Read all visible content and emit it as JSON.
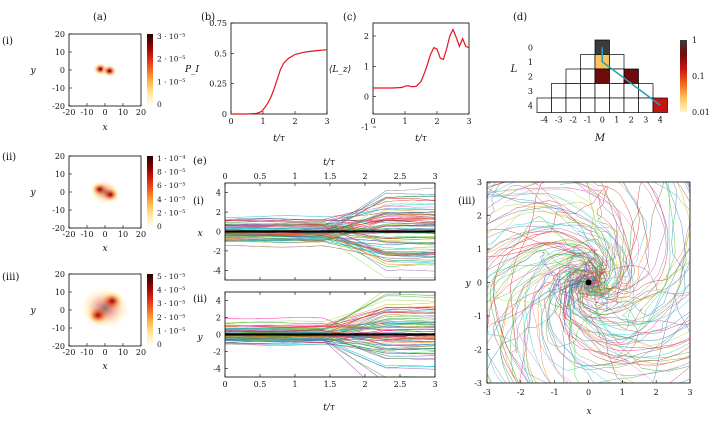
{
  "chart_data": [
    {
      "id": "a",
      "type": "heatmap",
      "panel_label": "(a)",
      "subpanels": [
        {
          "label": "(i)",
          "xlabel": "x",
          "ylabel": "y",
          "xlim": [
            -20,
            20
          ],
          "ylim": [
            -20,
            20
          ],
          "xticks": [
            "-20",
            "-10",
            "0",
            "10",
            "20"
          ],
          "yticks": [
            "20",
            "10",
            "0",
            "-10",
            "-20"
          ],
          "colorbar_ticks": [
            "3 · 10⁻⁵",
            "2 · 10⁻⁵",
            "1 · 10⁻⁵",
            "0"
          ],
          "colorbar_max": 3.3e-05,
          "blobs": [
            {
              "x": -2.5,
              "y": 0.5,
              "sigma": 2.2,
              "amp": 1.0
            },
            {
              "x": 2.5,
              "y": -0.5,
              "sigma": 2.2,
              "amp": 1.0
            }
          ]
        },
        {
          "label": "(ii)",
          "xlabel": "x",
          "ylabel": "y",
          "xlim": [
            -20,
            20
          ],
          "ylim": [
            -20,
            20
          ],
          "xticks": [
            "-20",
            "-10",
            "0",
            "10",
            "20"
          ],
          "yticks": [
            "20",
            "10",
            "0",
            "-10",
            "-20"
          ],
          "colorbar_ticks": [
            "1 · 10⁻⁴",
            "8 · 10⁻⁵",
            "6 · 10⁻⁵",
            "4 · 10⁻⁵",
            "2 · 10⁻⁵",
            "0"
          ],
          "colorbar_max": 0.0001,
          "blobs": [
            {
              "x": -3,
              "y": 1.5,
              "sigma": 2.6,
              "amp": 1.0
            },
            {
              "x": 3,
              "y": -1.5,
              "sigma": 2.6,
              "amp": 1.0
            },
            {
              "x": 0,
              "y": 0,
              "sigma": 4.5,
              "amp": 0.45
            }
          ]
        },
        {
          "label": "(iii)",
          "xlabel": "x",
          "ylabel": "y",
          "xlim": [
            -20,
            20
          ],
          "ylim": [
            -20,
            20
          ],
          "xticks": [
            "-20",
            "-10",
            "0",
            "10",
            "20"
          ],
          "yticks": [
            "20",
            "10",
            "0",
            "-10",
            "-20"
          ],
          "colorbar_ticks": [
            "5 · 10⁻⁵",
            "4 · 10⁻⁵",
            "3 · 10⁻⁵",
            "2 · 10⁻⁵",
            "1 · 10⁻⁵",
            "0"
          ],
          "colorbar_max": 5e-05,
          "blobs": [
            {
              "x": -4,
              "y": -3,
              "sigma": 3.2,
              "amp": 1.0
            },
            {
              "x": 4,
              "y": 5,
              "sigma": 3.2,
              "amp": 1.0
            },
            {
              "x": 0,
              "y": 1,
              "sigma": 7.5,
              "amp": 0.55
            }
          ]
        }
      ]
    },
    {
      "id": "b",
      "type": "line",
      "panel_label": "(b)",
      "xlabel": "t/τ",
      "ylabel": "P_I",
      "xlim": [
        0,
        3
      ],
      "ylim": [
        0,
        0.75
      ],
      "xticks": [
        "0",
        "1",
        "2",
        "3"
      ],
      "yticks": [
        "0",
        "0.25",
        "0.5",
        "0.75"
      ],
      "color": "#e8141c",
      "x": [
        0,
        0.5,
        0.8,
        0.95,
        1.05,
        1.15,
        1.25,
        1.35,
        1.45,
        1.55,
        1.65,
        1.8,
        2.0,
        2.3,
        2.6,
        3.0
      ],
      "y": [
        0,
        0,
        0.005,
        0.02,
        0.05,
        0.09,
        0.14,
        0.21,
        0.29,
        0.37,
        0.42,
        0.46,
        0.49,
        0.51,
        0.52,
        0.53
      ]
    },
    {
      "id": "c",
      "type": "line",
      "panel_label": "(c)",
      "xlabel": "t/τ",
      "ylabel": "⟨L_z⟩",
      "xlim": [
        0,
        3
      ],
      "ylim": [
        -1,
        2.5
      ],
      "xticks": [
        "0",
        "1",
        "2",
        "3"
      ],
      "yticks": [
        "2",
        "1",
        "0",
        "-1"
      ],
      "color": "#e8141c",
      "x": [
        0,
        0.6,
        0.9,
        1.0,
        1.1,
        1.2,
        1.35,
        1.5,
        1.6,
        1.7,
        1.8,
        1.9,
        2.0,
        2.1,
        2.2,
        2.3,
        2.4,
        2.5,
        2.6,
        2.7,
        2.8,
        2.9,
        3.0
      ],
      "y": [
        0,
        0,
        0.02,
        0.07,
        0.09,
        0.05,
        0.06,
        0.25,
        0.55,
        0.9,
        1.3,
        1.55,
        1.5,
        1.15,
        1.1,
        1.5,
        2.0,
        2.25,
        1.95,
        1.6,
        1.9,
        1.6,
        1.55
      ]
    },
    {
      "id": "d",
      "type": "heatmap",
      "panel_label": "(d)",
      "xlabel": "M",
      "ylabel": "L",
      "xticks": [
        "-4",
        "-3",
        "-2",
        "-1",
        "0",
        "1",
        "2",
        "3",
        "4"
      ],
      "yticks": [
        "0",
        "1",
        "2",
        "3",
        "4"
      ],
      "colorbar_ticks": [
        "1",
        "0.1",
        "0.01"
      ],
      "colorbar_range": [
        0.01,
        1
      ],
      "scale": "log",
      "line_color": "#1fa0b4",
      "filled": [
        {
          "L": 0,
          "M": 0,
          "value": 0.9
        },
        {
          "L": 1,
          "M": 0,
          "value": 0.02
        },
        {
          "L": 2,
          "M": 0,
          "value": 0.35
        },
        {
          "L": 2,
          "M": 2,
          "value": 0.5
        },
        {
          "L": 4,
          "M": 4,
          "value": 0.25
        }
      ],
      "trajectory": [
        [
          0,
          0
        ],
        [
          0,
          1
        ],
        [
          4,
          4
        ]
      ]
    },
    {
      "id": "e",
      "type": "line",
      "panel_label": "(e)",
      "xlabel": "t/τ",
      "top_xlabel": "t/τ",
      "xlim": [
        0,
        3
      ],
      "xticks": [
        "0",
        "0.5",
        "1",
        "1.5",
        "2",
        "2.5",
        "3"
      ],
      "subpanels": [
        {
          "label": "(i)",
          "ylabel": "x",
          "ylim": [
            -5,
            5
          ],
          "yticks": [
            "4",
            "2",
            "0",
            "-2",
            "-4"
          ]
        },
        {
          "label": "(ii)",
          "ylabel": "y",
          "ylim": [
            -5,
            5
          ],
          "yticks": [
            "4",
            "2",
            "0",
            "-2",
            "-4"
          ]
        }
      ],
      "trajectories": 80,
      "mean_value": 0
    },
    {
      "id": "f",
      "type": "scatter",
      "panel_label": "(iii)",
      "xlabel": "x",
      "ylabel": "y",
      "xlim": [
        -3,
        3
      ],
      "ylim": [
        -3,
        3
      ],
      "xticks": [
        "-3",
        "-2",
        "-1",
        "0",
        "1",
        "2",
        "3"
      ],
      "yticks": [
        "3",
        "2",
        "1",
        "0",
        "-1",
        "-2",
        "-3"
      ],
      "trajectories": 120,
      "center_dot": [
        0,
        0
      ]
    }
  ],
  "palette": [
    "#e41a1c",
    "#4daf4a",
    "#377eb8",
    "#984ea3",
    "#ff7f00",
    "#a6d854",
    "#17becf",
    "#e377c2",
    "#7f7f7f",
    "#bcbd22",
    "#1f77b4",
    "#d62728",
    "#2ca02c",
    "#9467bd",
    "#8c564b",
    "#00ced1",
    "#ff1493",
    "#32cd32"
  ],
  "colormap_heat": [
    "#ffffff",
    "#ffe9a0",
    "#fdb84a",
    "#f56a1e",
    "#d92410",
    "#8a0000",
    "#2b0000"
  ],
  "colormap_d": [
    "#fff7c8",
    "#fdc35a",
    "#f4631c",
    "#c61511",
    "#6e0b0b",
    "#3c3c3c"
  ]
}
